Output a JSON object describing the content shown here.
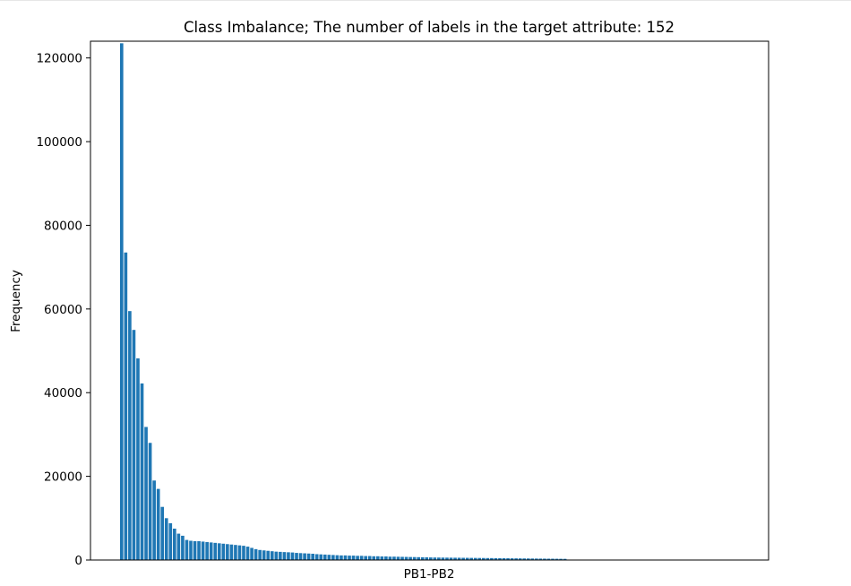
{
  "chart_data": {
    "type": "bar",
    "title": "Class Imbalance; The number of labels in the target attribute: 152",
    "xlabel": "PB1-PB2",
    "ylabel": "Frequency",
    "ylim": [
      0,
      124000
    ],
    "yticks": [
      0,
      20000,
      40000,
      60000,
      80000,
      100000,
      120000
    ],
    "ytick_labels": [
      "0",
      "20000",
      "40000",
      "60000",
      "80000",
      "100000",
      "120000"
    ],
    "category_count": 152,
    "values": [
      123500,
      73500,
      59500,
      55000,
      48200,
      42200,
      31800,
      28000,
      19000,
      17000,
      12700,
      10000,
      8800,
      7500,
      6300,
      5800,
      4800,
      4600,
      4500,
      4500,
      4400,
      4300,
      4200,
      4100,
      4000,
      3900,
      3800,
      3700,
      3600,
      3500,
      3400,
      3200,
      2900,
      2600,
      2400,
      2300,
      2200,
      2100,
      2000,
      1950,
      1900,
      1850,
      1800,
      1700,
      1650,
      1600,
      1550,
      1500,
      1400,
      1350,
      1300,
      1250,
      1200,
      1150,
      1100,
      1100,
      1050,
      1050,
      1000,
      1000,
      950,
      950,
      900,
      900,
      850,
      850,
      800,
      800,
      780,
      760,
      740,
      720,
      700,
      680,
      660,
      640,
      620,
      600,
      590,
      580,
      570,
      560,
      550,
      540,
      530,
      520,
      510,
      500,
      490,
      480,
      470,
      460,
      450,
      440,
      430,
      420,
      410,
      400,
      390,
      380,
      370,
      360,
      350,
      340,
      330,
      320,
      310,
      300,
      290,
      280,
      0,
      0,
      0,
      0,
      0,
      0,
      0,
      0,
      0,
      0,
      0,
      0,
      0,
      0,
      0,
      0,
      0,
      0,
      0,
      0,
      0,
      0,
      0,
      0,
      0,
      0,
      0,
      0,
      0,
      0,
      0,
      0,
      0,
      0,
      0,
      0,
      0,
      0,
      0,
      0,
      0,
      0
    ],
    "bar_color": "#1f77b4",
    "grid": false,
    "legend": "none"
  }
}
